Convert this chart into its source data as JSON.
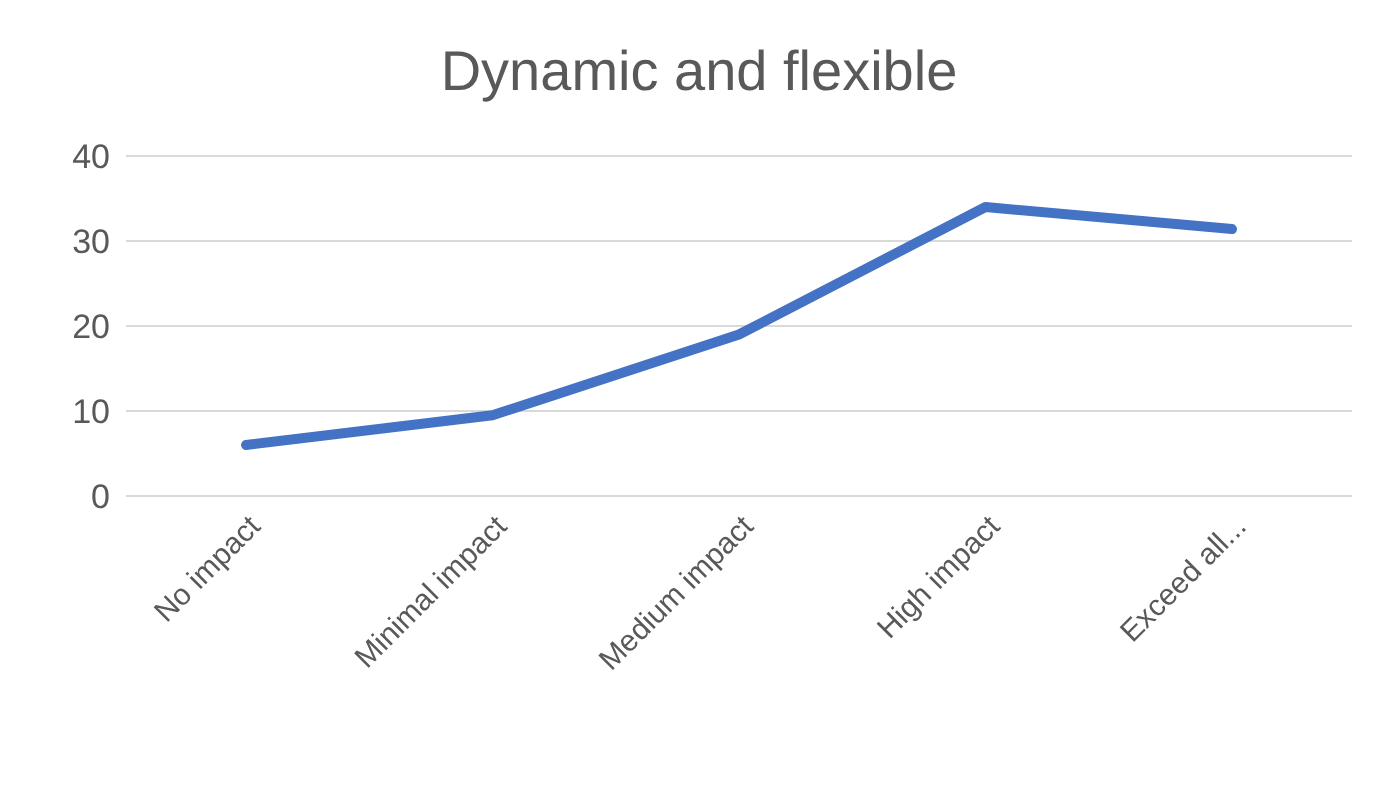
{
  "chart_data": {
    "type": "line",
    "title": "Dynamic and flexible",
    "categories": [
      "No impact",
      "Minimal impact",
      "Medium impact",
      "High impact",
      "Exceed all..."
    ],
    "series": [
      {
        "color": "#4472c4",
        "values": [
          6,
          9.5,
          19,
          34,
          31.4
        ]
      }
    ],
    "ylim": [
      0,
      40
    ],
    "yticks": [
      0,
      10,
      20,
      30,
      40
    ],
    "grid": "y",
    "legend": false,
    "marker": "none",
    "line_style": "solid"
  }
}
